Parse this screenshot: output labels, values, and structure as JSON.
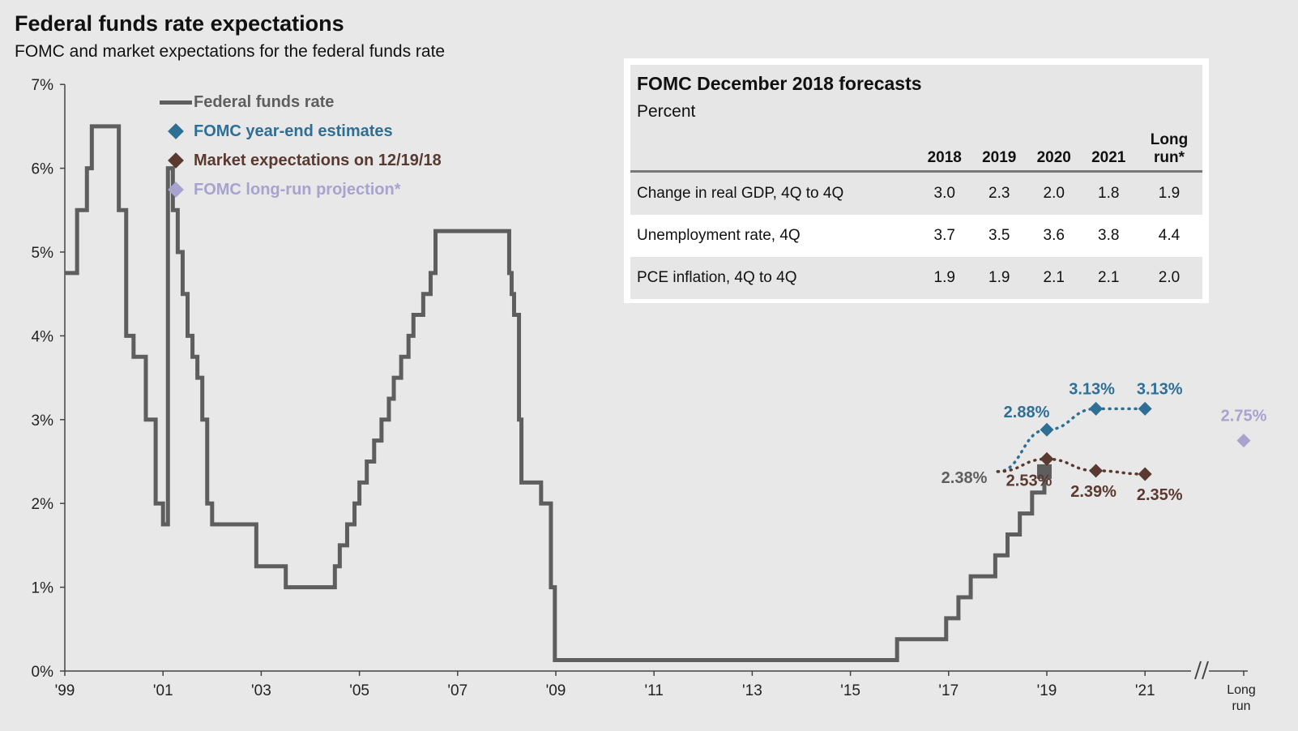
{
  "title": "Federal funds rate expectations",
  "subtitle": "FOMC and market expectations for the federal funds rate",
  "legend": [
    {
      "label": "Federal funds rate",
      "color": "#5e5e5e",
      "marker": "line"
    },
    {
      "label": "FOMC year-end estimates",
      "color": "#2e6f96",
      "marker": "diamond"
    },
    {
      "label": "Market expectations on 12/19/18",
      "color": "#5a3a30",
      "marker": "diamond"
    },
    {
      "label": "FOMC long-run projection*",
      "color": "#a8a2cf",
      "marker": "diamond"
    }
  ],
  "forecast": {
    "title": "FOMC December 2018 forecasts",
    "subtitle": "Percent",
    "headers": [
      "",
      "2018",
      "2019",
      "2020",
      "2021",
      "Long run*"
    ],
    "rows": [
      {
        "label": "Change in real GDP, 4Q to 4Q",
        "values": [
          "3.0",
          "2.3",
          "2.0",
          "1.8",
          "1.9"
        ]
      },
      {
        "label": "Unemployment rate, 4Q",
        "values": [
          "3.7",
          "3.5",
          "3.6",
          "3.8",
          "4.4"
        ]
      },
      {
        "label": "PCE inflation, 4Q to 4Q",
        "values": [
          "1.9",
          "1.9",
          "2.1",
          "2.1",
          "2.0"
        ]
      }
    ]
  },
  "chart_data": {
    "type": "line",
    "title": "Federal funds rate expectations",
    "ylim": [
      0,
      7
    ],
    "xlim": [
      1999,
      2022
    ],
    "y_ticks": [
      "0%",
      "1%",
      "2%",
      "3%",
      "4%",
      "5%",
      "6%",
      "7%"
    ],
    "x_ticks": [
      "'99",
      "'01",
      "'03",
      "'05",
      "'07",
      "'09",
      "'11",
      "'13",
      "'15",
      "'17",
      "'19",
      "'21",
      "Long run"
    ],
    "axis_break": "//",
    "series": [
      {
        "name": "Federal funds rate",
        "color": "#5e5e5e",
        "step": true,
        "x": [
          1999.0,
          1999.25,
          1999.45,
          1999.55,
          1999.9,
          2000.1,
          2000.25,
          2000.4,
          2000.65,
          2000.85,
          2001.0,
          2001.1,
          2001.2,
          2001.3,
          2001.4,
          2001.5,
          2001.6,
          2001.7,
          2001.8,
          2001.9,
          2002.0,
          2002.9,
          2003.5,
          2004.5,
          2004.6,
          2004.75,
          2004.9,
          2005.0,
          2005.15,
          2005.3,
          2005.45,
          2005.6,
          2005.7,
          2005.85,
          2006.0,
          2006.1,
          2006.3,
          2006.45,
          2006.55,
          2008.05,
          2008.1,
          2008.15,
          2008.25,
          2008.3,
          2008.7,
          2008.9,
          2008.98,
          2015.95,
          2016.95,
          2017.2,
          2017.45,
          2017.95,
          2018.2,
          2018.45,
          2018.7,
          2018.95
        ],
        "y": [
          4.75,
          5.5,
          6.0,
          6.5,
          6.5,
          5.5,
          4.0,
          3.75,
          3.0,
          2.0,
          1.75,
          6.0,
          5.5,
          5.0,
          4.5,
          4.0,
          3.75,
          3.5,
          3.0,
          2.0,
          1.75,
          1.25,
          1.0,
          1.25,
          1.5,
          1.75,
          2.0,
          2.25,
          2.5,
          2.75,
          3.0,
          3.25,
          3.5,
          3.75,
          4.0,
          4.25,
          4.5,
          4.75,
          5.25,
          4.75,
          4.5,
          4.25,
          3.0,
          2.25,
          2.0,
          1.0,
          0.13,
          0.38,
          0.63,
          0.88,
          1.13,
          1.38,
          1.63,
          1.88,
          2.13,
          2.38
        ]
      },
      {
        "name": "FOMC year-end estimates",
        "color": "#2e6f96",
        "x": [
          2018,
          2019,
          2020,
          2021
        ],
        "y": [
          2.38,
          2.88,
          3.13,
          3.13
        ],
        "labels": [
          "",
          "2.88%",
          "3.13%",
          "3.13%"
        ]
      },
      {
        "name": "Market expectations on 12/19/18",
        "color": "#5a3a30",
        "x": [
          2018,
          2019,
          2020,
          2021
        ],
        "y": [
          2.38,
          2.53,
          2.39,
          2.35
        ],
        "labels": [
          "",
          "2.53%",
          "2.39%",
          "2.35%"
        ]
      },
      {
        "name": "FOMC long-run projection*",
        "color": "#a8a2cf",
        "x": [
          "Long run"
        ],
        "y": [
          2.75
        ],
        "labels": [
          "2.75%"
        ]
      }
    ],
    "annotations": [
      {
        "text": "2.38%",
        "x": 2018,
        "y": 2.38,
        "color": "#5e5e5e"
      }
    ]
  }
}
